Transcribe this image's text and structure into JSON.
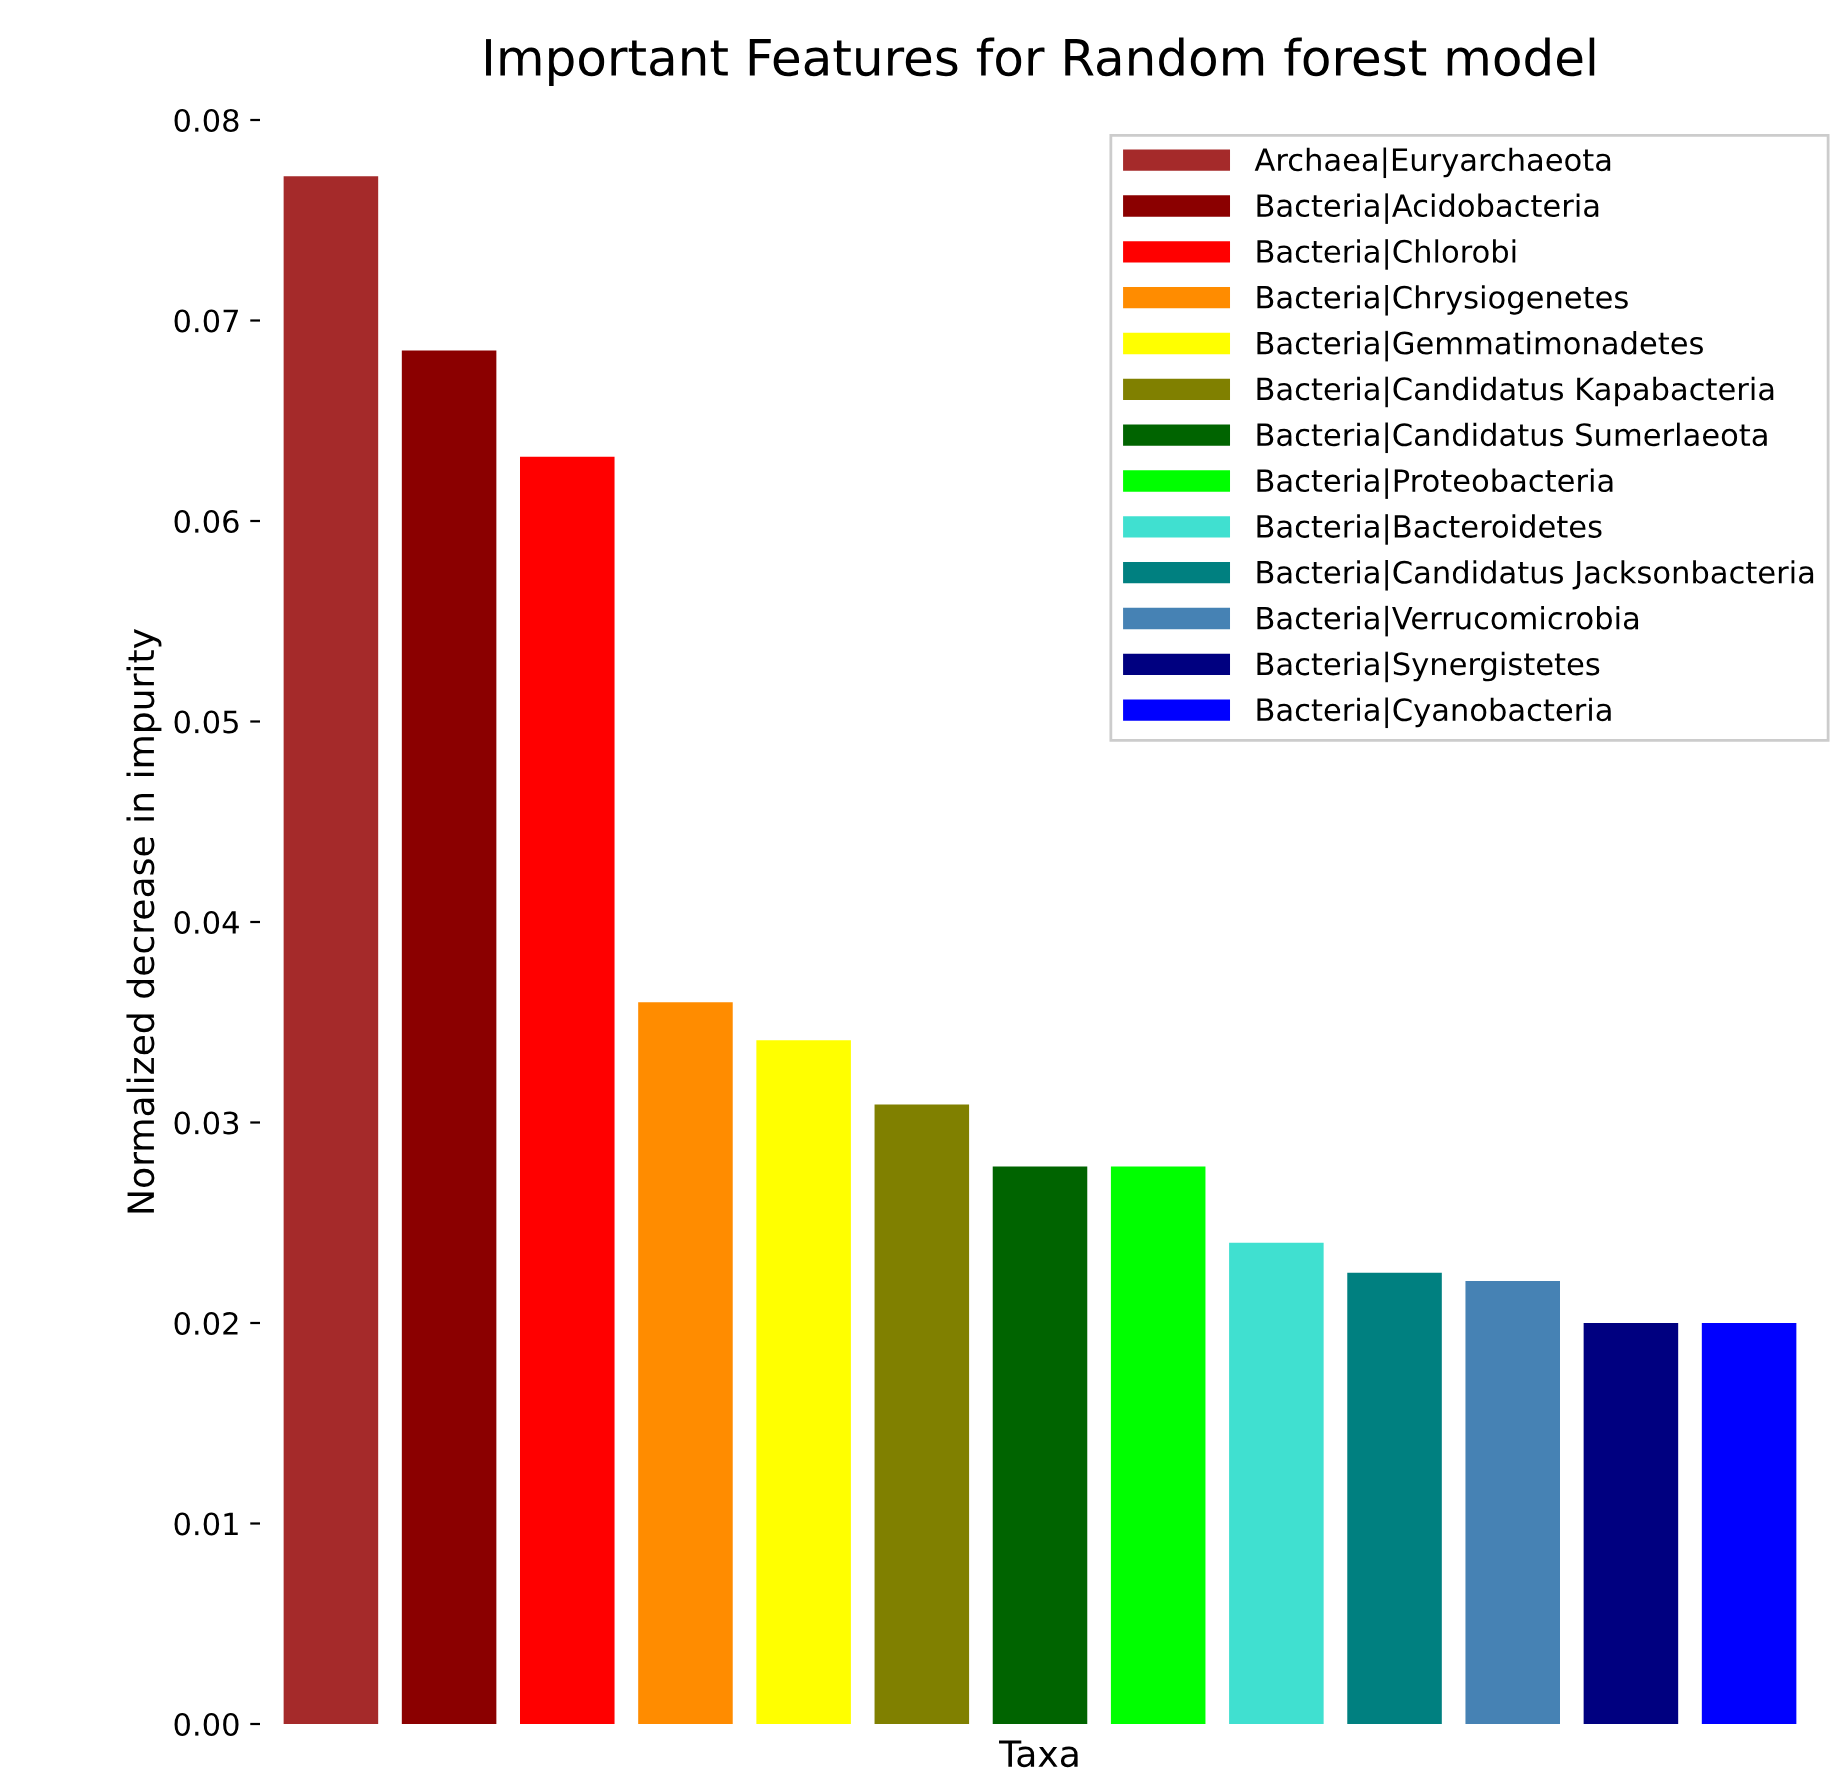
{
  "chart_data": {
    "type": "bar",
    "title": "Important Features for Random forest model",
    "xlabel": "Taxa",
    "ylabel": "Normalized decrease in impurity",
    "categories": [
      null,
      null,
      null,
      null,
      null,
      null,
      null,
      null,
      null,
      null,
      null,
      null,
      null
    ],
    "stacked": true,
    "series": [
      {
        "name": "Archaea|Euryarchaeota",
        "color": "#a52a2a",
        "values": [
          0.0772,
          0,
          0,
          0,
          0,
          0,
          0,
          0,
          0,
          0,
          0,
          0,
          0
        ]
      },
      {
        "name": "Bacteria|Acidobacteria",
        "color": "#8b0000",
        "values": [
          0,
          0.0685,
          0,
          0,
          0,
          0,
          0,
          0,
          0,
          0,
          0,
          0,
          0
        ]
      },
      {
        "name": "Bacteria|Chlorobi",
        "color": "#ff0000",
        "values": [
          0,
          0,
          0.0632,
          0,
          0,
          0,
          0,
          0,
          0,
          0,
          0,
          0,
          0
        ]
      },
      {
        "name": "Bacteria|Chrysiogenetes",
        "color": "#ff8c00",
        "values": [
          0,
          0,
          0,
          0.036,
          0,
          0,
          0,
          0,
          0,
          0,
          0,
          0,
          0
        ]
      },
      {
        "name": "Bacteria|Gemmatimonadetes",
        "color": "#ffff00",
        "values": [
          0,
          0,
          0,
          0,
          0.0341,
          0,
          0,
          0,
          0,
          0,
          0,
          0,
          0
        ]
      },
      {
        "name": "Bacteria|Candidatus Kapabacteria",
        "color": "#808000",
        "values": [
          0,
          0,
          0,
          0,
          0,
          0.0309,
          0,
          0,
          0,
          0,
          0,
          0,
          0
        ]
      },
      {
        "name": "Bacteria|Candidatus Sumerlaeota",
        "color": "#006400",
        "values": [
          0,
          0,
          0,
          0,
          0,
          0,
          0.0278,
          0,
          0,
          0,
          0,
          0,
          0
        ]
      },
      {
        "name": "Bacteria|Proteobacteria",
        "color": "#00ff00",
        "values": [
          0,
          0,
          0,
          0,
          0,
          0,
          0,
          0.0278,
          0,
          0,
          0,
          0,
          0
        ]
      },
      {
        "name": "Bacteria|Bacteroidetes",
        "color": "#40e0d0",
        "values": [
          0,
          0,
          0,
          0,
          0,
          0,
          0,
          0,
          0.024,
          0,
          0,
          0,
          0
        ]
      },
      {
        "name": "Bacteria|Candidatus Jacksonbacteria",
        "color": "#008080",
        "values": [
          0,
          0,
          0,
          0,
          0,
          0,
          0,
          0,
          0,
          0.0225,
          0,
          0,
          0
        ]
      },
      {
        "name": "Bacteria|Verrucomicrobia",
        "color": "#4682b4",
        "values": [
          0,
          0,
          0,
          0,
          0,
          0,
          0,
          0,
          0,
          0,
          0.0221,
          0,
          0
        ]
      },
      {
        "name": "Bacteria|Synergistetes",
        "color": "#000080",
        "values": [
          0,
          0,
          0,
          0,
          0,
          0,
          0,
          0,
          0,
          0,
          0,
          0.02,
          0
        ]
      },
      {
        "name": "Bacteria|Cyanobacteria",
        "color": "#0000ff",
        "values": [
          0,
          0,
          0,
          0,
          0,
          0,
          0,
          0,
          0,
          0,
          0,
          0,
          0.02
        ]
      }
    ],
    "ylim": [
      0,
      0.08
    ],
    "yticks": [
      {
        "value": 0,
        "label": "0.00"
      },
      {
        "value": 0.01,
        "label": "0.01"
      },
      {
        "value": 0.02,
        "label": "0.02"
      },
      {
        "value": 0.03,
        "label": "0.03"
      },
      {
        "value": 0.04,
        "label": "0.04"
      },
      {
        "value": 0.05,
        "label": "0.05"
      },
      {
        "value": 0.06,
        "label": "0.06"
      },
      {
        "value": 0.07,
        "label": "0.07"
      },
      {
        "value": 0.08,
        "label": "0.08"
      }
    ],
    "tick_labels": "y",
    "grid": false,
    "legend": "top right"
  }
}
